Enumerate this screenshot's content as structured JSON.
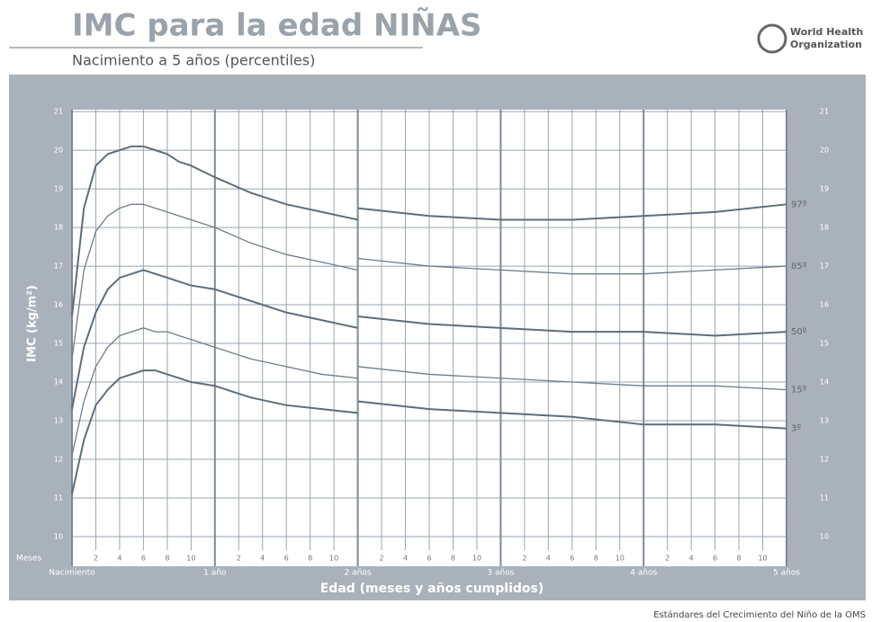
{
  "header": {
    "title": "IMC para la edad NIÑAS",
    "subtitle": "Nacimiento a 5 años (percentiles)",
    "org_line1": "World Health",
    "org_line2": "Organization"
  },
  "footer": "Estándares del Crecimiento del Niño de la OMS",
  "chart_data": {
    "type": "line",
    "x_label": "Edad (meses y años cumplidos)",
    "y_label": "IMC (kg/m²)",
    "months_label": "Meses",
    "x": [
      0,
      1,
      2,
      3,
      4,
      5,
      6,
      7,
      8,
      9,
      10,
      12,
      15,
      18,
      21,
      24,
      24,
      24,
      30,
      36,
      42,
      48,
      54,
      60
    ],
    "series": [
      {
        "name": "97º",
        "color": "#5f6d7b",
        "width": 2,
        "values": [
          15.7,
          18.5,
          19.6,
          19.9,
          20.0,
          20.1,
          20.1,
          20.0,
          19.9,
          19.7,
          19.6,
          19.3,
          18.9,
          18.6,
          18.4,
          18.2,
          null,
          18.5,
          18.3,
          18.2,
          18.2,
          18.3,
          18.4,
          18.6
        ]
      },
      {
        "name": "85º",
        "color": "#6f7c89",
        "width": 1.3,
        "values": [
          14.6,
          16.9,
          17.9,
          18.3,
          18.5,
          18.6,
          18.6,
          18.5,
          18.4,
          18.3,
          18.2,
          18.0,
          17.6,
          17.3,
          17.1,
          16.9,
          null,
          17.2,
          17.0,
          16.9,
          16.8,
          16.8,
          16.9,
          17.0
        ]
      },
      {
        "name": "50º",
        "color": "#5f6d7b",
        "width": 2,
        "values": [
          13.3,
          14.9,
          15.8,
          16.4,
          16.7,
          16.8,
          16.9,
          16.8,
          16.7,
          16.6,
          16.5,
          16.4,
          16.1,
          15.8,
          15.6,
          15.4,
          null,
          15.7,
          15.5,
          15.4,
          15.3,
          15.3,
          15.2,
          15.3
        ]
      },
      {
        "name": "15º",
        "color": "#6f7c89",
        "width": 1.3,
        "values": [
          12.1,
          13.5,
          14.4,
          14.9,
          15.2,
          15.3,
          15.4,
          15.3,
          15.3,
          15.2,
          15.1,
          14.9,
          14.6,
          14.4,
          14.2,
          14.1,
          null,
          14.4,
          14.2,
          14.1,
          14.0,
          13.9,
          13.9,
          13.8
        ]
      },
      {
        "name": "3º",
        "color": "#5f6d7b",
        "width": 2,
        "values": [
          11.1,
          12.5,
          13.4,
          13.8,
          14.1,
          14.2,
          14.3,
          14.3,
          14.2,
          14.1,
          14.0,
          13.9,
          13.6,
          13.4,
          13.3,
          13.2,
          null,
          13.5,
          13.3,
          13.2,
          13.1,
          12.9,
          12.9,
          12.8
        ]
      }
    ],
    "xlim": [
      0,
      60
    ],
    "xticks": [
      {
        "value": 0,
        "label": "Nacimiento"
      },
      {
        "value": 12,
        "label": "1 año"
      },
      {
        "value": 24,
        "label": "2 años"
      },
      {
        "value": 36,
        "label": "3 años"
      },
      {
        "value": 48,
        "label": "4 años"
      },
      {
        "value": 60,
        "label": "5 años"
      }
    ],
    "minor_xticks": [
      {
        "value": 2,
        "label": "2"
      },
      {
        "value": 4,
        "label": "4"
      },
      {
        "value": 6,
        "label": "6"
      },
      {
        "value": 8,
        "label": "8"
      },
      {
        "value": 10,
        "label": "10"
      },
      {
        "value": 14,
        "label": "2"
      },
      {
        "value": 16,
        "label": "4"
      },
      {
        "value": 18,
        "label": "6"
      },
      {
        "value": 20,
        "label": "8"
      },
      {
        "value": 22,
        "label": "10"
      },
      {
        "value": 26,
        "label": "2"
      },
      {
        "value": 28,
        "label": "4"
      },
      {
        "value": 30,
        "label": "6"
      },
      {
        "value": 32,
        "label": "8"
      },
      {
        "value": 34,
        "label": "10"
      },
      {
        "value": 38,
        "label": "2"
      },
      {
        "value": 40,
        "label": "4"
      },
      {
        "value": 42,
        "label": "6"
      },
      {
        "value": 44,
        "label": "8"
      },
      {
        "value": 46,
        "label": "10"
      },
      {
        "value": 50,
        "label": "2"
      },
      {
        "value": 52,
        "label": "4"
      },
      {
        "value": 54,
        "label": "6"
      },
      {
        "value": 56,
        "label": "8"
      },
      {
        "value": 58,
        "label": "10"
      }
    ],
    "ylim": [
      9.65,
      21.05
    ],
    "yticks": [
      10,
      11,
      12,
      13,
      14,
      15,
      16,
      17,
      18,
      19,
      20,
      21
    ],
    "grid": true
  }
}
